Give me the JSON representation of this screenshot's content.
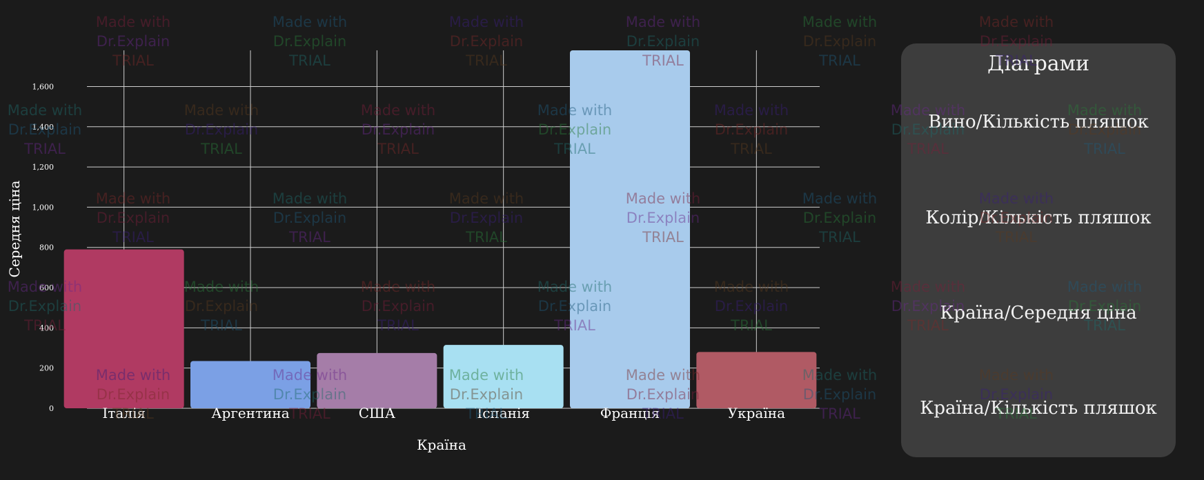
{
  "chart_data": {
    "type": "bar",
    "categories": [
      "Італія",
      "Аргентина",
      "США",
      "Іспанія",
      "Франція",
      "Україна"
    ],
    "values": [
      790,
      235,
      275,
      315,
      1780,
      280
    ],
    "xlabel": "Країна",
    "ylabel": "Середня ціна",
    "ylim": [
      0,
      1780
    ],
    "yticks": [
      0,
      200,
      400,
      600,
      800,
      1000,
      1200,
      1400,
      1600
    ],
    "ytick_labels": [
      "0",
      "200",
      "400",
      "600",
      "800",
      "1,000",
      "1,200",
      "1,400",
      "1,600"
    ],
    "colors": [
      "#b03a62",
      "#7ba0e5",
      "#a57da8",
      "#a8e0f2",
      "#a8cbec",
      "#b05a64"
    ],
    "grid": true
  },
  "side_panel": {
    "title": "Діаграми",
    "buttons": [
      "Вино/Кількість пляшок",
      "Колір/Кількість пляшок",
      "Країна/Середня ціна",
      "Країна/Кількість пляшок"
    ]
  },
  "watermark": {
    "lines": [
      "Made with",
      "Dr.Explain",
      "TRIAL"
    ]
  }
}
